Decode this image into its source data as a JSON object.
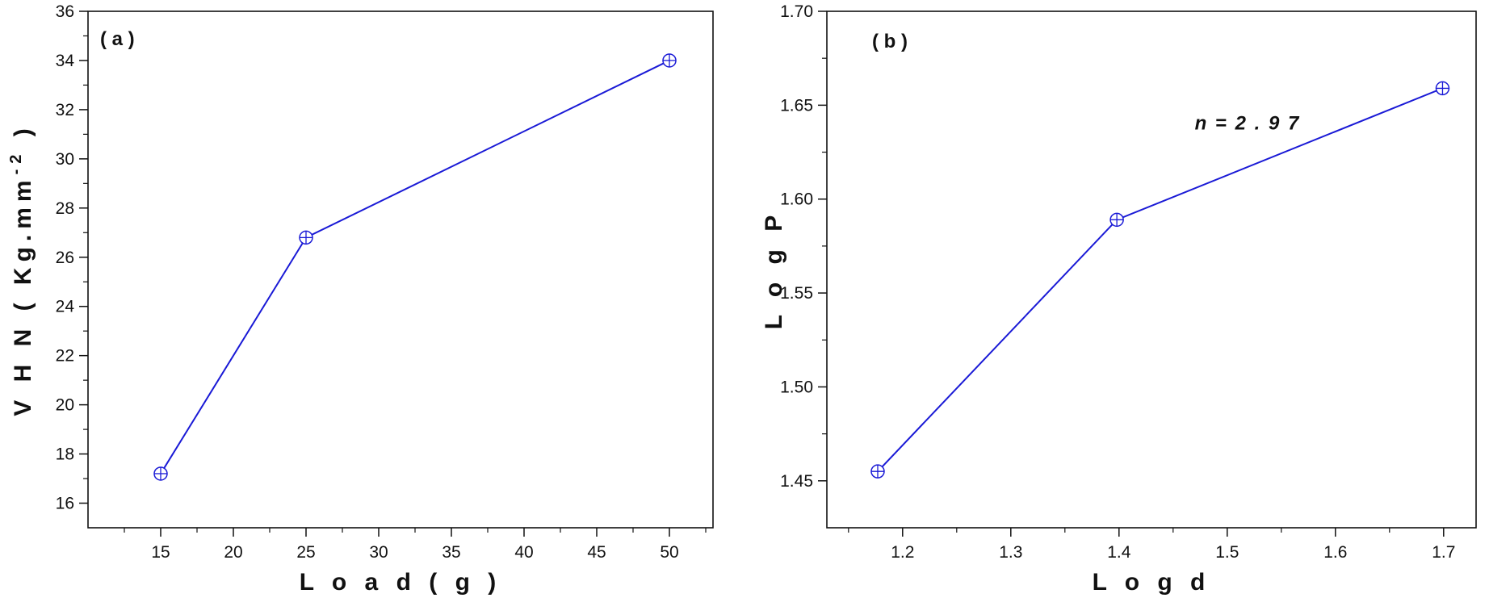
{
  "chart_data": [
    {
      "type": "line",
      "panel_label": "( a )",
      "xlabel": "L o a d ( g )",
      "ylabel": "V H N ( Kg.mm",
      "ylabel_sup": "-2",
      "ylabel_close": " )",
      "xlim": [
        10,
        53
      ],
      "ylim": [
        15,
        36
      ],
      "xticks": [
        15,
        20,
        25,
        30,
        35,
        40,
        45,
        50
      ],
      "yticks": [
        16,
        18,
        20,
        22,
        24,
        26,
        28,
        30,
        32,
        34,
        36
      ],
      "x": [
        15,
        25,
        50
      ],
      "series": [
        {
          "values": [
            17.2,
            26.8,
            34.0
          ],
          "color": "#1a1ad6"
        }
      ],
      "marker": "circle-plus",
      "grid": false,
      "annotations": []
    },
    {
      "type": "line",
      "panel_label": "( b )",
      "xlabel": "L o g d",
      "ylabel": "L o g P",
      "xlim": [
        1.13,
        1.73
      ],
      "ylim": [
        1.425,
        1.7
      ],
      "xticks": [
        1.2,
        1.3,
        1.4,
        1.5,
        1.6,
        1.7
      ],
      "yticks": [
        1.45,
        1.5,
        1.55,
        1.6,
        1.65,
        1.7
      ],
      "x": [
        1.177,
        1.398,
        1.699
      ],
      "series": [
        {
          "values": [
            1.455,
            1.589,
            1.659
          ],
          "color": "#1a1ad6"
        }
      ],
      "marker": "circle-plus",
      "grid": false,
      "annotations": [
        {
          "text": "n = 2 . 9 7",
          "x": 1.47,
          "y": 1.637
        }
      ]
    }
  ],
  "colors": {
    "series": "#1a1ad6",
    "axes": "#111111"
  }
}
